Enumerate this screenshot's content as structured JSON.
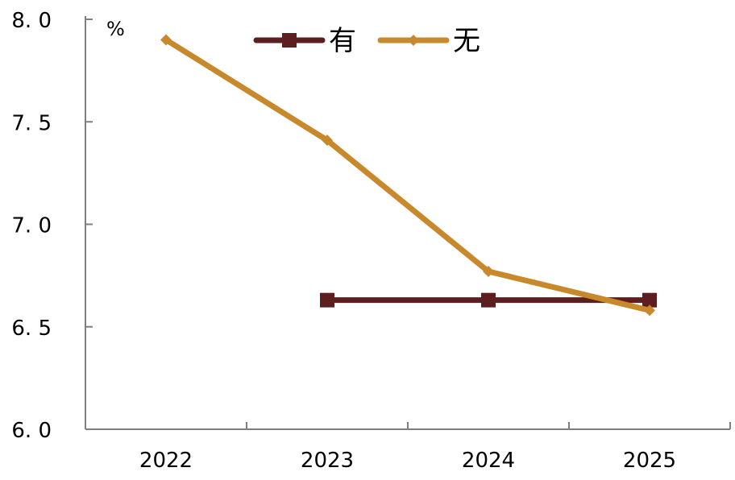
{
  "chart_data": {
    "type": "line",
    "categories": [
      "2022",
      "2023",
      "2024",
      "2025"
    ],
    "y_unit": "%",
    "ylim": [
      6.0,
      8.0
    ],
    "yticks": [
      6.0,
      6.5,
      7.0,
      7.5,
      8.0
    ],
    "ytick_labels": [
      "6. 0",
      "6. 5",
      "7. 0",
      "7. 5",
      "8. 0"
    ],
    "legend_position": "top-center",
    "grid": false,
    "series": [
      {
        "name": "有",
        "color": "#5c1e1e",
        "marker": "square",
        "values": [
          null,
          6.63,
          6.63,
          6.63
        ]
      },
      {
        "name": "无",
        "color": "#c8892c",
        "marker": "diamond",
        "values": [
          7.9,
          7.41,
          6.77,
          6.58
        ]
      }
    ]
  }
}
